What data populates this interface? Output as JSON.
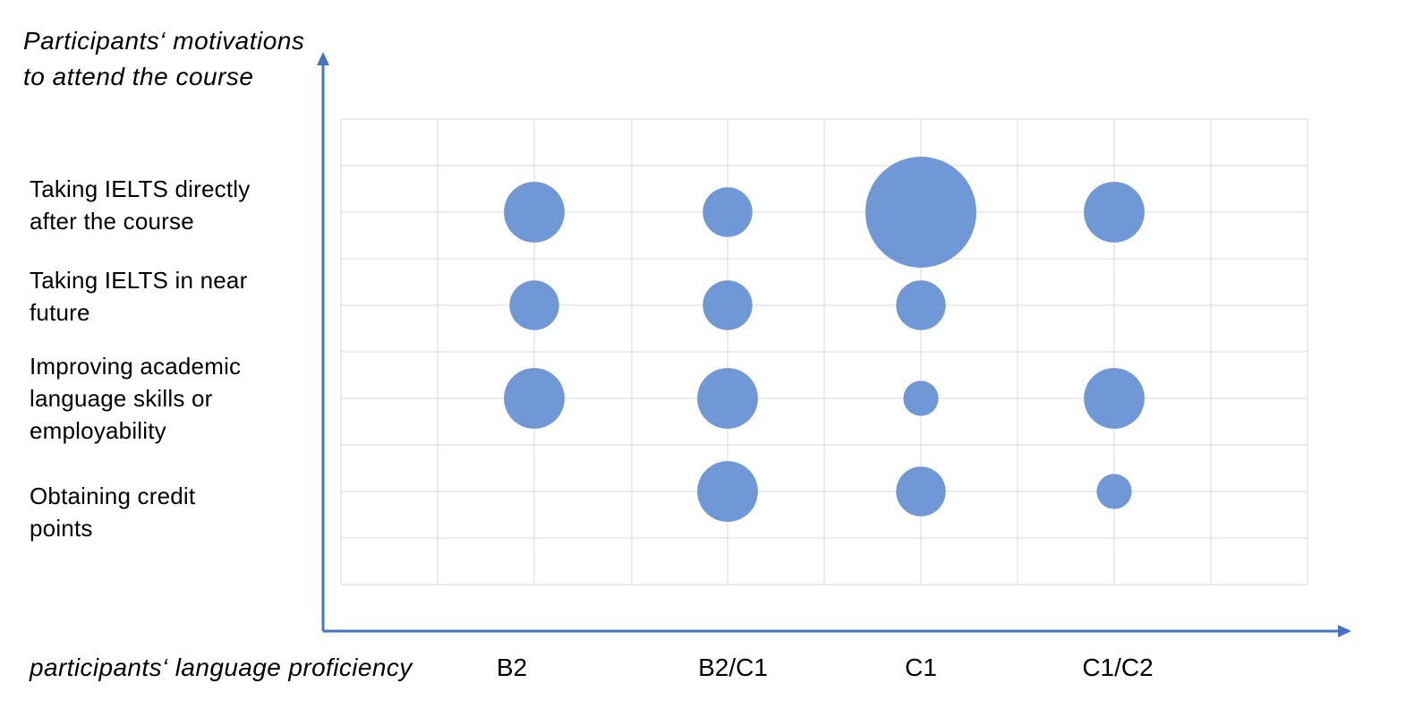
{
  "chart_data": {
    "type": "scatter",
    "ylabel_lines": [
      "Participants‘ motivations",
      "to attend the course"
    ],
    "xlabel": "participants‘ language proficiency",
    "x_categories": [
      "B2",
      "B2/C1",
      "C1",
      "C1/C2"
    ],
    "y_categories": [
      {
        "lines": [
          "Taking IELTS directly",
          "after the course"
        ]
      },
      {
        "lines": [
          "Taking IELTS in near",
          "future"
        ]
      },
      {
        "lines": [
          "Improving academic",
          "language skills or",
          "employability"
        ]
      },
      {
        "lines": [
          "Obtaining credit",
          "points"
        ]
      }
    ],
    "bubbles": [
      {
        "x": "B2",
        "y": 0,
        "size": 3
      },
      {
        "x": "B2/C1",
        "y": 0,
        "size": 2
      },
      {
        "x": "C1",
        "y": 0,
        "size": 10
      },
      {
        "x": "C1/C2",
        "y": 0,
        "size": 3
      },
      {
        "x": "B2",
        "y": 1,
        "size": 2
      },
      {
        "x": "B2/C1",
        "y": 1,
        "size": 2
      },
      {
        "x": "C1",
        "y": 1,
        "size": 2
      },
      {
        "x": "B2",
        "y": 2,
        "size": 3
      },
      {
        "x": "B2/C1",
        "y": 2,
        "size": 3
      },
      {
        "x": "C1",
        "y": 2,
        "size": 1
      },
      {
        "x": "C1/C2",
        "y": 2,
        "size": 3
      },
      {
        "x": "B2/C1",
        "y": 3,
        "size": 3
      },
      {
        "x": "C1",
        "y": 3,
        "size": 2
      },
      {
        "x": "C1/C2",
        "y": 3,
        "size": 1
      }
    ],
    "grid": true,
    "colors": {
      "bubble": "#7097d6",
      "axis": "#4472c4",
      "grid": "#d9d9d9"
    }
  }
}
